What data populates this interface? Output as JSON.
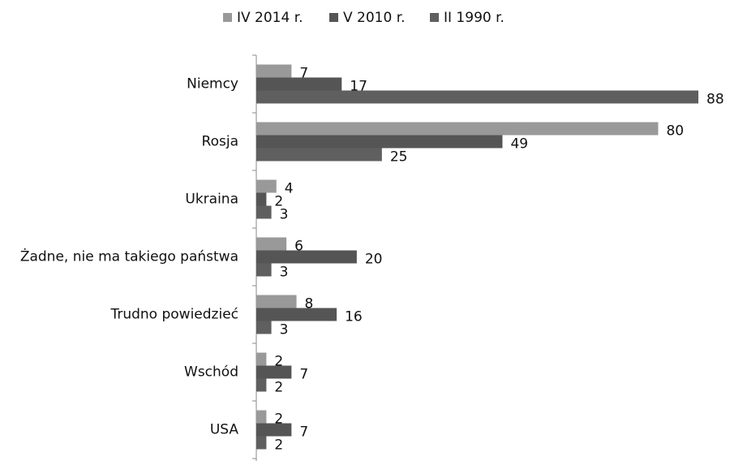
{
  "chart_data": {
    "type": "barh",
    "categories": [
      "Niemcy",
      "Rosja",
      "Ukraina",
      "Żadne, nie ma takiego państwa",
      "Trudno powiedzieć",
      "Wschód",
      "USA"
    ],
    "series": [
      {
        "name": "IV 2014 r.",
        "color": "#999999",
        "values": [
          7,
          80,
          4,
          6,
          8,
          2,
          2
        ]
      },
      {
        "name": "V 2010 r.",
        "color": "#555555",
        "values": [
          17,
          49,
          2,
          20,
          16,
          7,
          7
        ]
      },
      {
        "name": "II 1990 r.",
        "color": "#5f5f5f",
        "values": [
          88,
          25,
          3,
          3,
          3,
          2,
          2
        ]
      }
    ],
    "legend": "top"
  }
}
